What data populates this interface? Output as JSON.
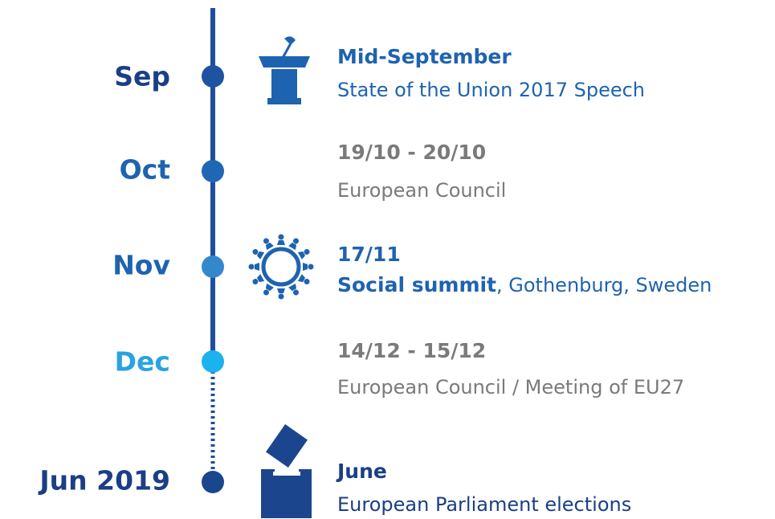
{
  "timeline": {
    "items": [
      {
        "month": "Sep",
        "date": "Mid-September",
        "description": "State of the Union 2017 Speech"
      },
      {
        "month": "Oct",
        "date": "19/10 - 20/10",
        "description": "European Council"
      },
      {
        "month": "Nov",
        "date": "17/11",
        "highlight": "Social summit",
        "description": ", Gothenburg, Sweden"
      },
      {
        "month": "Dec",
        "date": "14/12 - 15/12",
        "description": "European Council / Meeting of EU27"
      },
      {
        "month": "Jun 2019",
        "date": "June",
        "description": "European Parliament elections"
      }
    ]
  }
}
